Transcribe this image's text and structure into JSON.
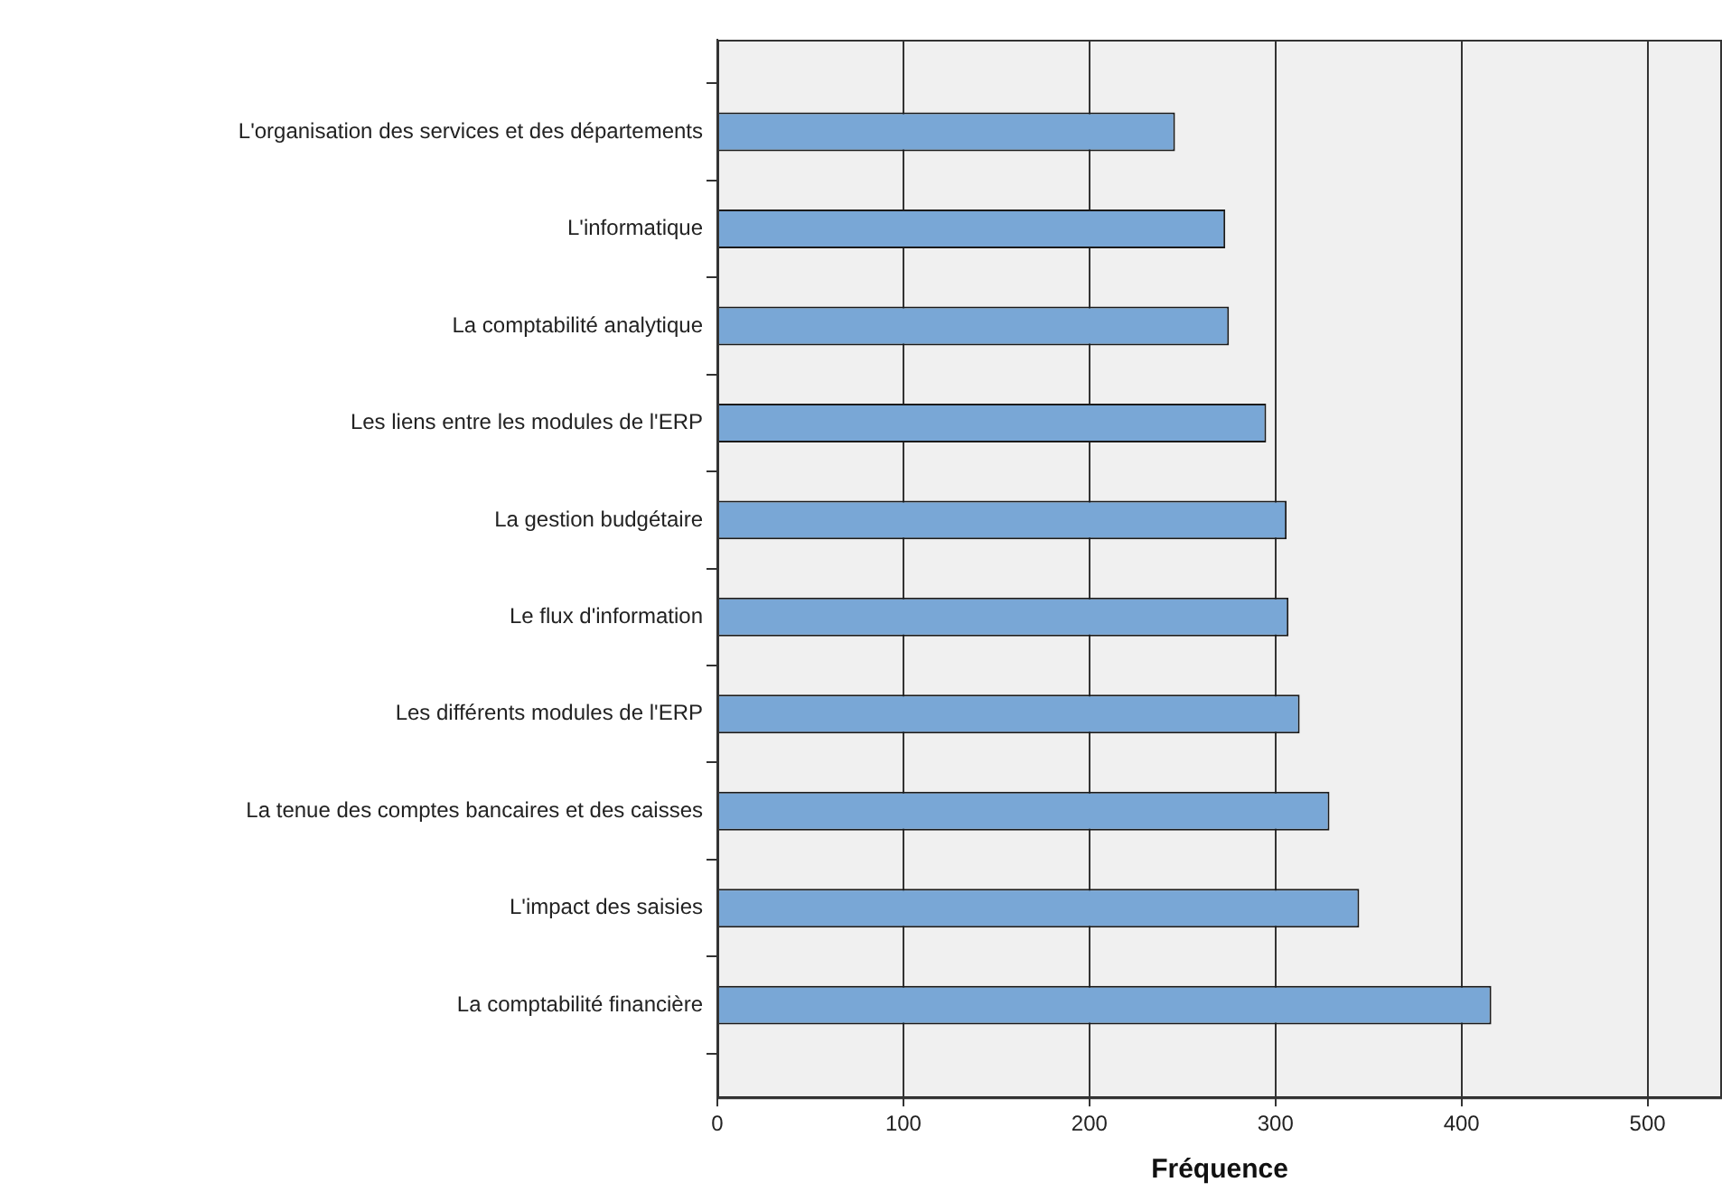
{
  "chart_data": {
    "type": "bar",
    "orientation": "horizontal",
    "xlabel": "Fréquence",
    "categories": [
      "L'organisation des services et des départements",
      "L'informatique",
      "La comptabilité analytique",
      "Les liens entre les modules de l'ERP",
      "La gestion budgétaire",
      "Le flux d'information",
      "Les différents modules de l'ERP",
      "La tenue des comptes bancaires et des caisses",
      "L'impact des saisies",
      "La comptabilité financière"
    ],
    "values": [
      246,
      273,
      275,
      295,
      306,
      307,
      313,
      329,
      345,
      416
    ],
    "color": "#79a7d6",
    "xlim": [
      0,
      540
    ],
    "xticks": [
      0,
      100,
      200,
      300,
      400,
      500
    ],
    "grid": "x",
    "legend": false
  }
}
